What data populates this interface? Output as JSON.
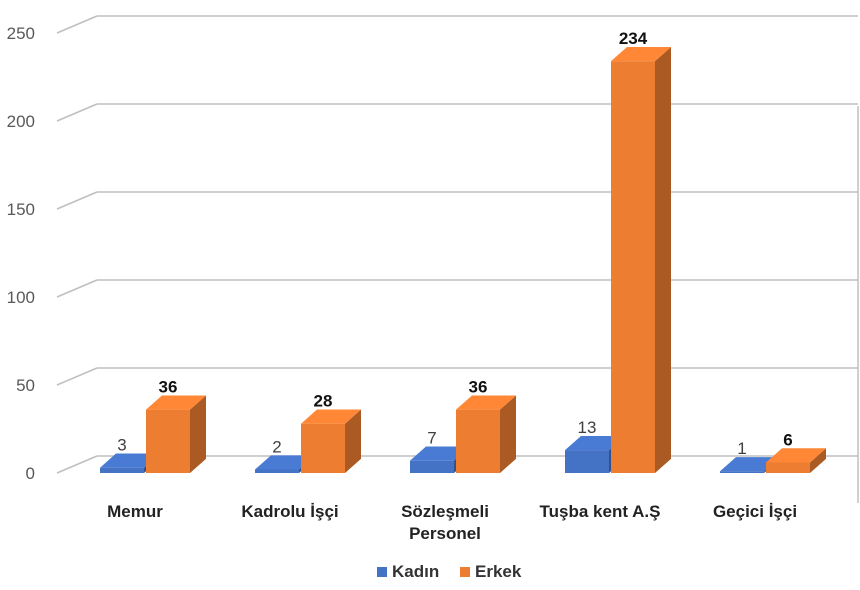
{
  "chart_data": {
    "type": "bar",
    "categories": [
      "Memur",
      "Kadrolu İşçi",
      "Sözleşmeli Personel",
      "Tuşba kent A.Ş",
      "Geçici İşçi"
    ],
    "category_lines": [
      [
        "Memur"
      ],
      [
        "Kadrolu İşçi"
      ],
      [
        "Sözleşmeli",
        "Personel"
      ],
      [
        "Tuşba kent A.Ş"
      ],
      [
        "Geçici İşçi"
      ]
    ],
    "series": [
      {
        "name": "Kadın",
        "values": [
          3,
          2,
          7,
          13,
          1
        ],
        "color": "#4472C4"
      },
      {
        "name": "Erkek",
        "values": [
          36,
          28,
          36,
          234,
          6
        ],
        "color": "#ED7D31"
      }
    ],
    "yticks": [
      "0",
      "50",
      "100",
      "150",
      "200",
      "250"
    ],
    "ylim": [
      0,
      250
    ],
    "grid": true,
    "legend_position": "bottom",
    "three_d": true
  }
}
